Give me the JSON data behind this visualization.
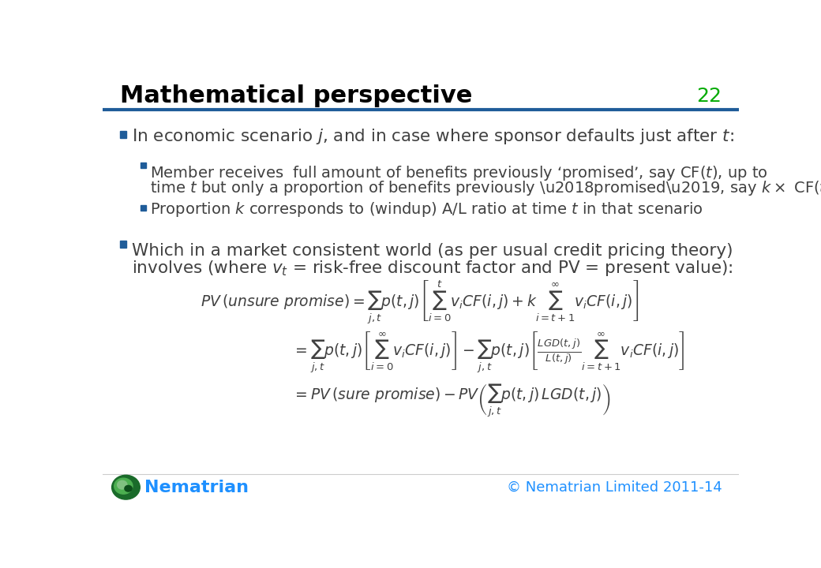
{
  "title": "Mathematical perspective",
  "slide_number": "22",
  "title_color": "#000000",
  "slide_number_color": "#00AA00",
  "header_line_color": "#1F5C99",
  "bullet_color": "#1F5C99",
  "sub_bullet_color": "#1F5C99",
  "text_color": "#404040",
  "footer_text": "Nematrian",
  "footer_color": "#1E90FF",
  "copyright_text": "© Nematrian Limited 2011-14",
  "copyright_color": "#1E90FF",
  "background_color": "#FFFFFF"
}
